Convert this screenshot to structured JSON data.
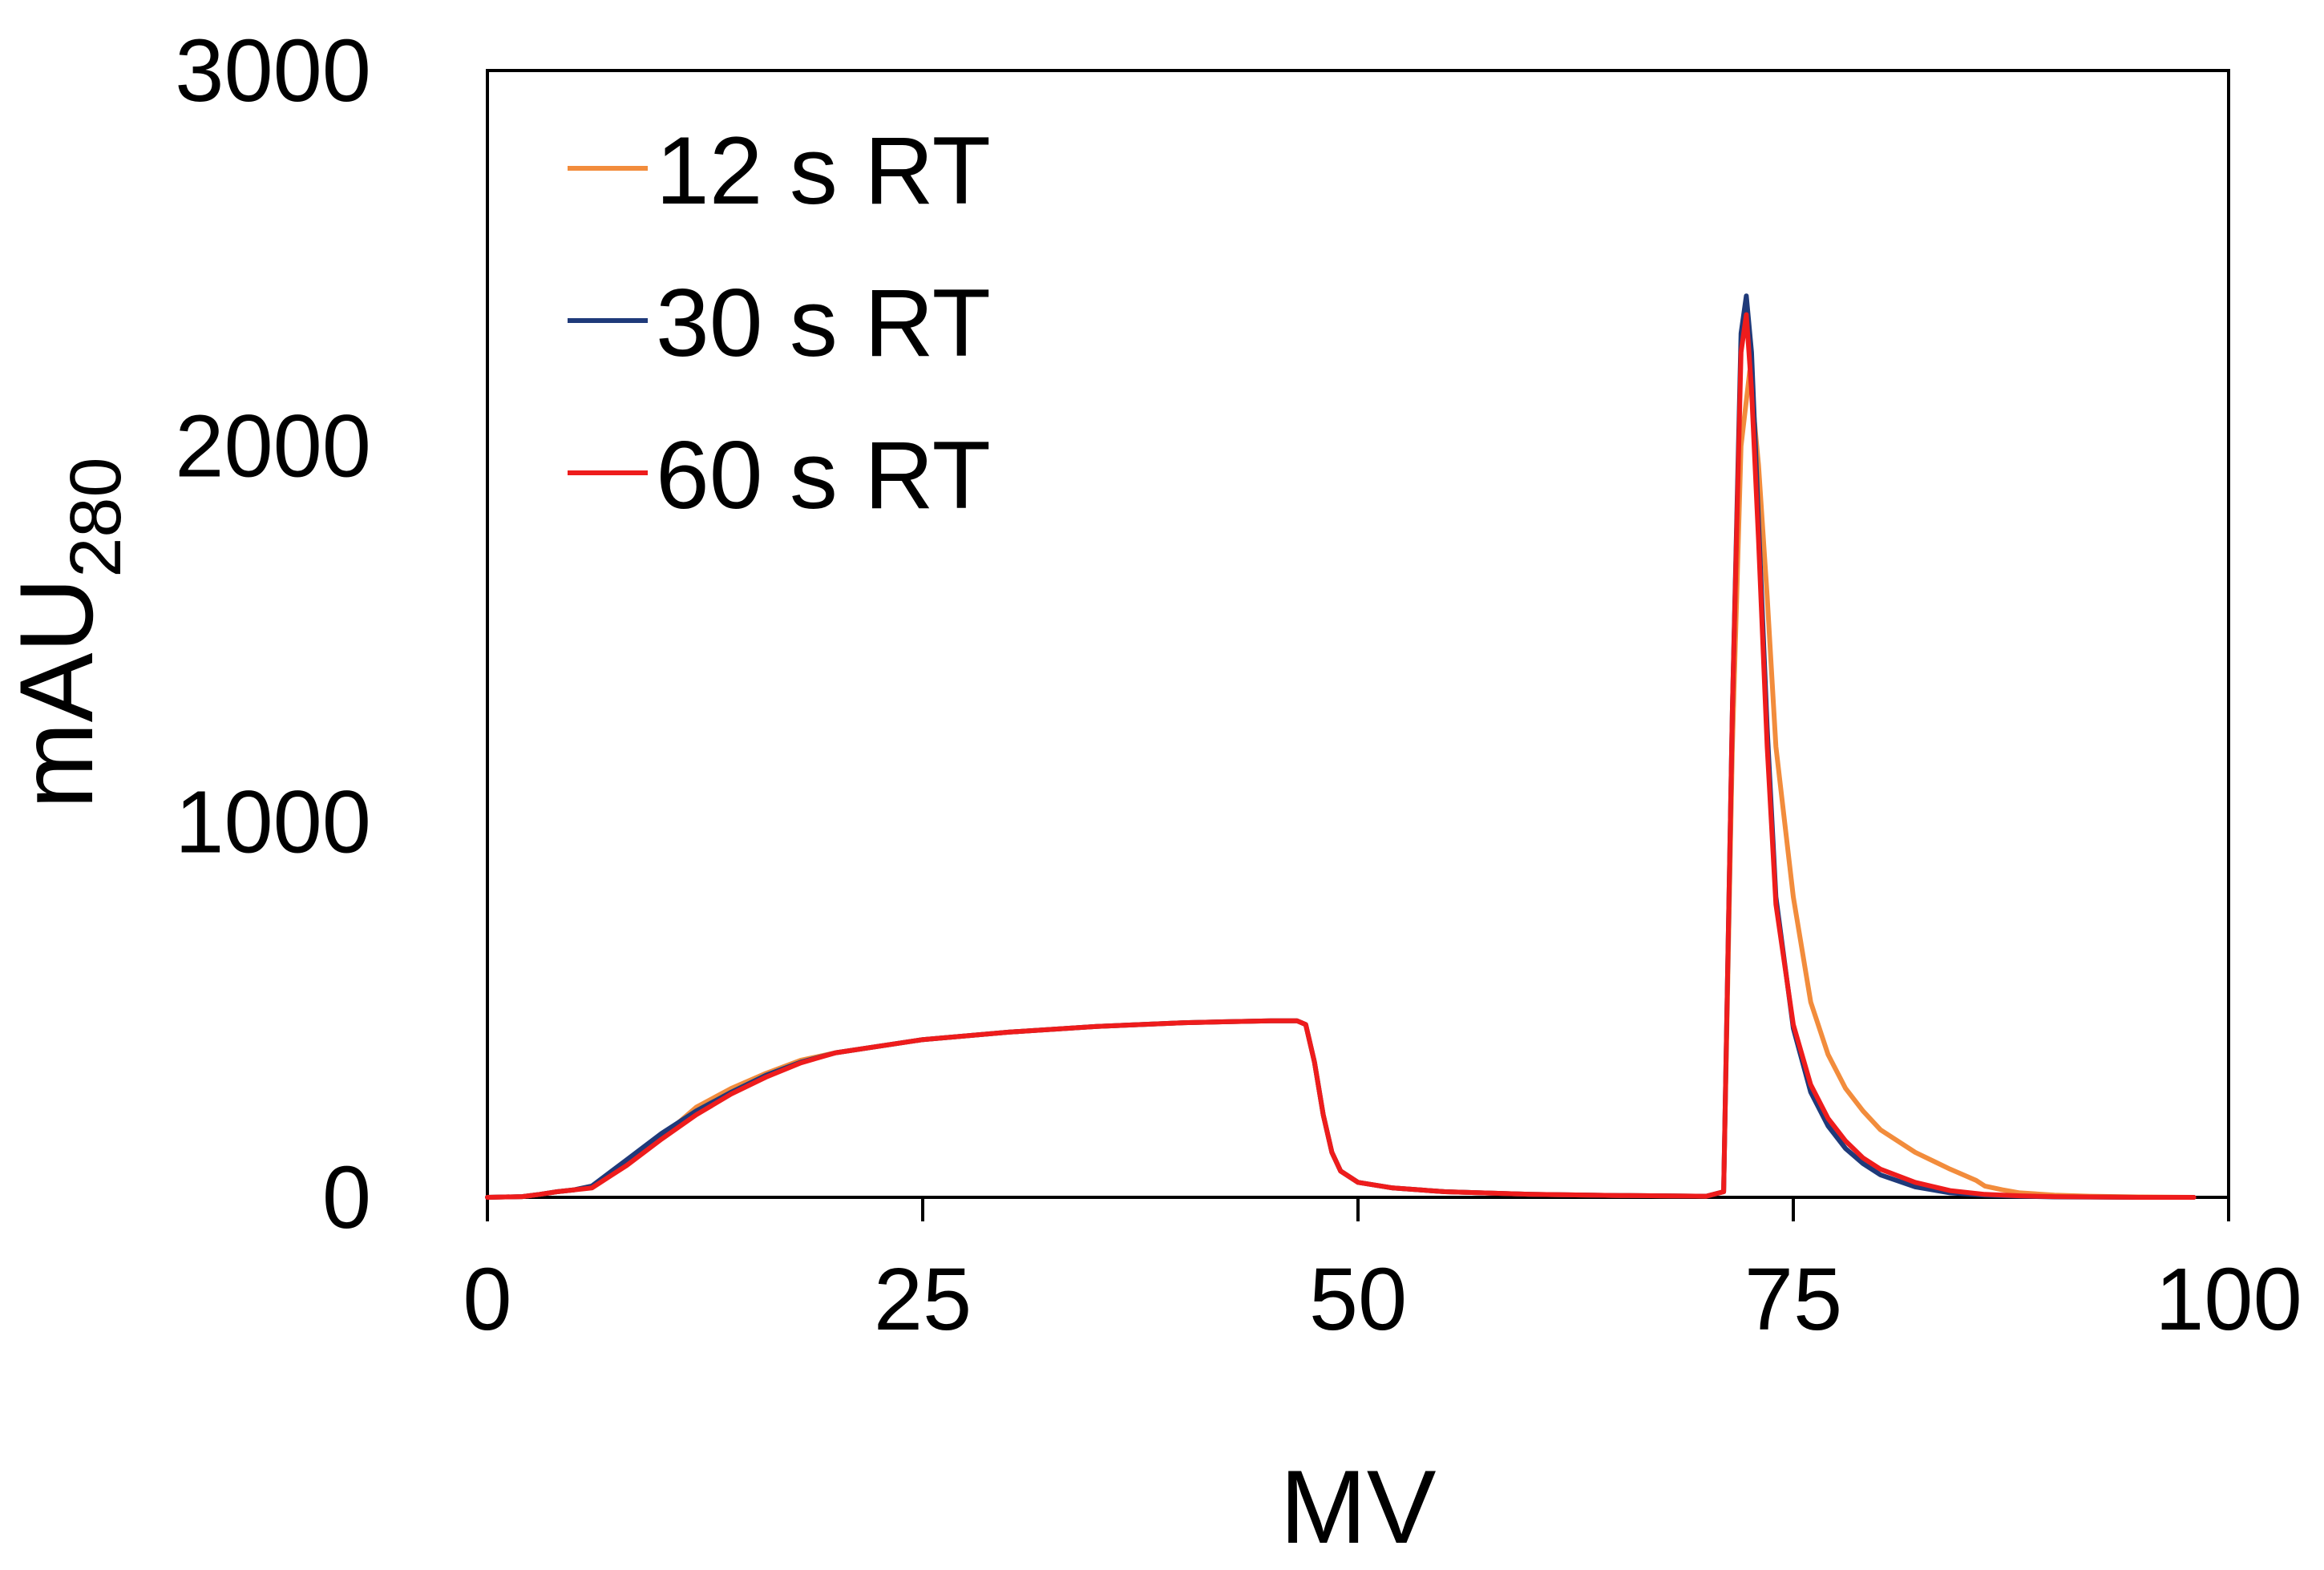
{
  "chart_data": {
    "type": "line",
    "title": "",
    "xlabel": "MV",
    "ylabel": "mAU",
    "ylabel_subscript": "280",
    "xlim": [
      0,
      100
    ],
    "ylim": [
      0,
      3000
    ],
    "xticks": [
      0,
      25,
      50,
      75,
      100
    ],
    "xtick_labels": [
      "0",
      "25",
      "50",
      "75",
      "100"
    ],
    "yticks": [
      0,
      1000,
      2000,
      3000
    ],
    "ytick_labels": [
      "0",
      "1000",
      "2000",
      "3000"
    ],
    "grid": false,
    "legend_position": "top-left",
    "series": [
      {
        "name": "12 s RT",
        "color": "#F28C3C",
        "x": [
          0,
          2,
          3,
          4,
          5,
          6,
          8,
          10,
          12,
          14,
          16,
          18,
          20,
          25,
          30,
          35,
          40,
          45,
          46.5,
          47,
          47.5,
          48,
          48.5,
          49,
          50,
          52,
          55,
          60,
          65,
          70,
          71,
          71.5,
          72,
          72.5,
          73,
          73.5,
          74,
          75,
          76,
          77,
          78,
          79,
          80,
          82,
          84,
          85.5,
          86,
          87,
          88,
          90,
          92,
          95,
          98
        ],
        "y": [
          0,
          2,
          8,
          15,
          20,
          30,
          90,
          160,
          240,
          290,
          330,
          365,
          385,
          420,
          440,
          455,
          465,
          470,
          470,
          460,
          360,
          220,
          120,
          70,
          40,
          25,
          15,
          8,
          5,
          3,
          15,
          1200,
          2000,
          2200,
          1950,
          1600,
          1200,
          800,
          520,
          380,
          290,
          230,
          180,
          120,
          75,
          45,
          30,
          20,
          12,
          6,
          3,
          1,
          0
        ]
      },
      {
        "name": "30 s RT",
        "color": "#1F3A7A",
        "x": [
          0,
          2,
          3,
          4,
          5,
          6,
          8,
          10,
          12,
          14,
          16,
          18,
          20,
          25,
          30,
          35,
          40,
          45,
          46.5,
          47,
          47.5,
          48,
          48.5,
          49,
          50,
          52,
          55,
          60,
          65,
          70,
          71,
          71.5,
          72,
          72.3,
          72.6,
          73,
          73.5,
          74,
          75,
          76,
          77,
          78,
          79,
          80,
          82,
          84,
          86,
          88,
          90,
          95,
          98
        ],
        "y": [
          0,
          2,
          8,
          15,
          20,
          30,
          100,
          170,
          230,
          280,
          325,
          360,
          385,
          420,
          440,
          455,
          465,
          470,
          470,
          460,
          360,
          220,
          120,
          70,
          40,
          25,
          15,
          8,
          5,
          3,
          15,
          1300,
          2300,
          2400,
          2250,
          1800,
          1250,
          800,
          450,
          280,
          190,
          130,
          90,
          60,
          28,
          12,
          6,
          3,
          1,
          0,
          0
        ]
      },
      {
        "name": "60 s RT",
        "color": "#EE1C1C",
        "x": [
          0,
          2,
          3,
          4,
          5,
          6,
          8,
          10,
          12,
          14,
          16,
          18,
          20,
          25,
          30,
          35,
          40,
          45,
          46.5,
          47,
          47.5,
          48,
          48.5,
          49,
          50,
          52,
          55,
          60,
          65,
          70,
          71,
          71.5,
          72,
          72.3,
          72.6,
          73,
          73.5,
          74,
          75,
          76,
          77,
          78,
          79,
          80,
          82,
          84,
          86,
          88,
          90,
          95,
          98
        ],
        "y": [
          0,
          2,
          8,
          15,
          20,
          25,
          85,
          155,
          220,
          275,
          320,
          358,
          385,
          420,
          440,
          455,
          465,
          470,
          470,
          460,
          360,
          220,
          120,
          70,
          40,
          25,
          15,
          8,
          5,
          3,
          15,
          1300,
          2250,
          2350,
          2150,
          1750,
          1200,
          780,
          460,
          300,
          210,
          150,
          105,
          75,
          40,
          18,
          8,
          4,
          2,
          0,
          0
        ]
      }
    ]
  }
}
